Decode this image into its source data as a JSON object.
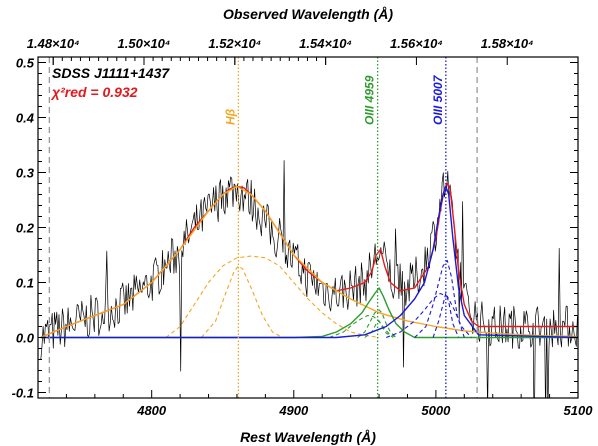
{
  "chart_data": {
    "type": "line",
    "title": "",
    "xlabel": "Rest Wavelength (Å)",
    "x2label": "Observed Wavelength (Å)",
    "ylabel": "",
    "xlim": [
      4720,
      5100
    ],
    "ylim": [
      -0.11,
      0.51
    ],
    "x_ticks": [
      "4800",
      "4900",
      "5000",
      "5100"
    ],
    "x_tick_values": [
      4800,
      4900,
      5000,
      5100
    ],
    "x2_ticks": [
      "1.48×10⁴",
      "1.50×10⁴",
      "1.52×10⁴",
      "1.54×10⁴",
      "1.56×10⁴",
      "1.58×10⁴"
    ],
    "x2_tick_values": [
      4730.7,
      4794.6,
      4858.5,
      4922.4,
      4986.3,
      5050.2
    ],
    "y_ticks": [
      "-0.1",
      "0.0",
      "0.1",
      "0.2",
      "0.3",
      "0.4",
      "0.5"
    ],
    "y_tick_values": [
      -0.1,
      0.0,
      0.1,
      0.2,
      0.3,
      0.4,
      0.5
    ],
    "annotations": {
      "object": "SDSS J1111+1437",
      "chi2_label": "χ²red = 0.932"
    },
    "line_markers": [
      {
        "label": "Hβ",
        "x": 4861,
        "color": "#f5a623",
        "style": "dotted"
      },
      {
        "label": "OIII 4959",
        "x": 4959,
        "color": "#2e9c2e",
        "style": "dotted"
      },
      {
        "label": "OIII 5007",
        "x": 5007,
        "color": "#1a1adc",
        "style": "dotted"
      },
      {
        "label": "",
        "x": 4728,
        "color": "#999999",
        "style": "dashed"
      },
      {
        "label": "",
        "x": 5029,
        "color": "#999999",
        "style": "dashed"
      }
    ],
    "series": [
      {
        "name": "",
        "color": "#000000",
        "style": "noisy",
        "x": [
          4722,
          4730,
          4740,
          4750,
          4760,
          4770,
          4780,
          4790,
          4800,
          4810,
          4820,
          4830,
          4840,
          4850,
          4855,
          4860,
          4865,
          4870,
          4875,
          4880,
          4890,
          4900,
          4910,
          4920,
          4930,
          4940,
          4950,
          4955,
          4960,
          4965,
          4970,
          4980,
          4990,
          5000,
          5005,
          5008,
          5012,
          5020,
          5030,
          5040,
          5050,
          5060,
          5070,
          5080,
          5090,
          5100
        ],
        "y": [
          0.0,
          0.01,
          0.02,
          0.03,
          0.04,
          0.05,
          0.06,
          0.08,
          0.1,
          0.13,
          0.16,
          0.2,
          0.23,
          0.26,
          0.27,
          0.27,
          0.26,
          0.25,
          0.23,
          0.21,
          0.17,
          0.14,
          0.11,
          0.09,
          0.08,
          0.09,
          0.1,
          0.13,
          0.16,
          0.13,
          0.1,
          0.09,
          0.12,
          0.2,
          0.27,
          0.28,
          0.2,
          0.07,
          0.03,
          0.02,
          0.02,
          0.02,
          0.02,
          0.02,
          0.02,
          0.02
        ]
      },
      {
        "name": "",
        "color": "#e31a1c",
        "style": "solid",
        "x": [
          4722,
          4740,
          4760,
          4780,
          4800,
          4810,
          4820,
          4830,
          4840,
          4850,
          4855,
          4860,
          4865,
          4870,
          4875,
          4880,
          4890,
          4900,
          4910,
          4920,
          4930,
          4940,
          4950,
          4955,
          4958,
          4961,
          4964,
          4968,
          4975,
          4985,
          4995,
          5000,
          5003,
          5006,
          5008,
          5010,
          5013,
          5016,
          5020,
          5025,
          5030,
          5040,
          5060,
          5080,
          5100
        ],
        "y": [
          0.0,
          0.02,
          0.04,
          0.06,
          0.1,
          0.13,
          0.16,
          0.2,
          0.23,
          0.26,
          0.27,
          0.275,
          0.272,
          0.26,
          0.245,
          0.23,
          0.19,
          0.15,
          0.12,
          0.1,
          0.085,
          0.09,
          0.1,
          0.12,
          0.15,
          0.16,
          0.13,
          0.1,
          0.085,
          0.09,
          0.13,
          0.18,
          0.23,
          0.27,
          0.28,
          0.27,
          0.2,
          0.12,
          0.06,
          0.03,
          0.02,
          0.02,
          0.02,
          0.02,
          0.02
        ]
      },
      {
        "name": "",
        "color": "#f5a623",
        "style": "solid",
        "x": [
          4722,
          4740,
          4760,
          4780,
          4800,
          4820,
          4840,
          4850,
          4860,
          4870,
          4880,
          4900,
          4920,
          4940,
          4960,
          4980,
          5000,
          5020,
          5040,
          5060,
          5080,
          5100
        ],
        "y": [
          0.0,
          0.02,
          0.04,
          0.06,
          0.1,
          0.16,
          0.23,
          0.26,
          0.275,
          0.26,
          0.23,
          0.15,
          0.1,
          0.07,
          0.045,
          0.03,
          0.02,
          0.012,
          0.008,
          0.005,
          0.003,
          0.002
        ]
      },
      {
        "name": "",
        "color": "#f5a623",
        "style": "dashed",
        "x": [
          4810,
          4820,
          4830,
          4840,
          4850,
          4860,
          4870,
          4880,
          4890,
          4900,
          4910,
          4920,
          4930,
          4940,
          4950,
          4960
        ],
        "y": [
          0.0,
          0.02,
          0.06,
          0.1,
          0.13,
          0.145,
          0.148,
          0.145,
          0.13,
          0.1,
          0.07,
          0.045,
          0.025,
          0.01,
          0.004,
          0.0
        ]
      },
      {
        "name": "",
        "color": "#f5a623",
        "style": "dashed",
        "x": [
          4835,
          4845,
          4852,
          4858,
          4861,
          4864,
          4870,
          4878,
          4885,
          4892
        ],
        "y": [
          0.0,
          0.03,
          0.08,
          0.12,
          0.13,
          0.125,
          0.09,
          0.04,
          0.01,
          0.0
        ]
      },
      {
        "name": "",
        "color": "#2e9c2e",
        "style": "solid",
        "x": [
          4722,
          4900,
          4920,
          4930,
          4940,
          4948,
          4953,
          4957,
          4960,
          4963,
          4967,
          4972,
          4978,
          4985,
          5100
        ],
        "y": [
          0.0,
          0.0,
          0.002,
          0.01,
          0.025,
          0.045,
          0.065,
          0.08,
          0.09,
          0.075,
          0.05,
          0.025,
          0.01,
          0.0,
          0.0
        ]
      },
      {
        "name": "",
        "color": "#2e9c2e",
        "style": "dashed",
        "x": [
          4925,
          4935,
          4942,
          4948,
          4952,
          4956,
          4960,
          4964,
          4968,
          4973
        ],
        "y": [
          0.0,
          0.01,
          0.025,
          0.035,
          0.04,
          0.038,
          0.03,
          0.015,
          0.005,
          0.0
        ]
      },
      {
        "name": "",
        "color": "#2e9c2e",
        "style": "dashed",
        "x": [
          4945,
          4950,
          4954,
          4957,
          4960,
          4962,
          4965,
          4968,
          4972
        ],
        "y": [
          0.0,
          0.01,
          0.03,
          0.045,
          0.05,
          0.045,
          0.025,
          0.01,
          0.0
        ]
      },
      {
        "name": "",
        "color": "#2e9c2e",
        "style": "dashed",
        "x": [
          4950,
          4955,
          4958,
          4960,
          4962,
          4965,
          4970
        ],
        "y": [
          0.0,
          0.01,
          0.025,
          0.03,
          0.02,
          0.008,
          0.0
        ]
      },
      {
        "name": "",
        "color": "#1a1adc",
        "style": "solid",
        "x": [
          4722,
          4930,
          4950,
          4965,
          4975,
          4985,
          4992,
          4998,
          5002,
          5005,
          5007,
          5009,
          5012,
          5016,
          5020,
          5030,
          5100
        ],
        "y": [
          0.0,
          0.0,
          0.005,
          0.02,
          0.04,
          0.07,
          0.1,
          0.16,
          0.22,
          0.26,
          0.275,
          0.26,
          0.18,
          0.09,
          0.04,
          0.005,
          0.0
        ]
      },
      {
        "name": "",
        "color": "#1a1adc",
        "style": "dashed",
        "x": [
          4965,
          4975,
          4985,
          4992,
          4998,
          5003,
          5008,
          5013,
          5018,
          5025
        ],
        "y": [
          0.0,
          0.01,
          0.03,
          0.05,
          0.07,
          0.08,
          0.075,
          0.05,
          0.02,
          0.0
        ]
      },
      {
        "name": "",
        "color": "#1a1adc",
        "style": "dashed",
        "x": [
          4985,
          4993,
          4998,
          5002,
          5005,
          5008,
          5011,
          5015,
          5020
        ],
        "y": [
          0.0,
          0.02,
          0.06,
          0.1,
          0.13,
          0.14,
          0.11,
          0.04,
          0.0
        ]
      },
      {
        "name": "",
        "color": "#1a1adc",
        "style": "dashed",
        "x": [
          4998,
          5002,
          5005,
          5007,
          5009,
          5012,
          5016
        ],
        "y": [
          0.0,
          0.03,
          0.06,
          0.08,
          0.065,
          0.025,
          0.0
        ]
      }
    ],
    "grid": false,
    "legend": "none"
  }
}
